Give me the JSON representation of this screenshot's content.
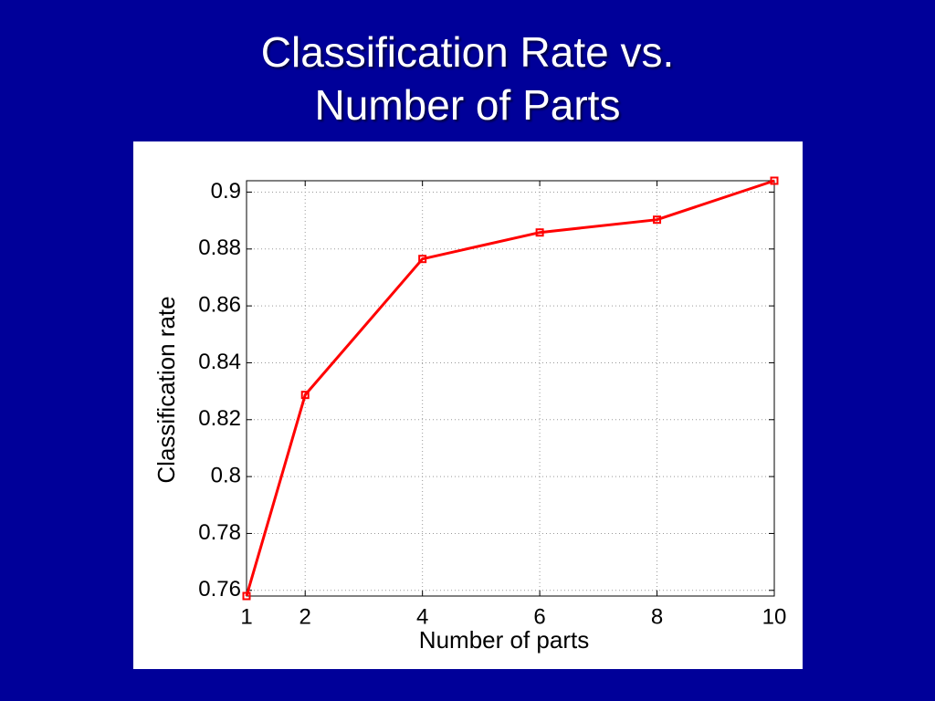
{
  "chart_data": {
    "type": "line",
    "title": "Classification Rate vs. Number of Parts",
    "xlabel": "Number of parts",
    "ylabel": "Classification rate",
    "x": [
      1,
      2,
      4,
      6,
      8,
      10
    ],
    "series": [
      {
        "name": "Classification rate",
        "color": "#ff0000",
        "values": [
          0.758,
          0.8287,
          0.8765,
          0.8858,
          0.8903,
          0.904
        ]
      }
    ],
    "xlim": [
      1,
      10
    ],
    "xticks": [
      1,
      2,
      4,
      6,
      8,
      10
    ],
    "ylim": [
      0.758,
      0.904
    ],
    "yticks": [
      0.76,
      0.78,
      0.8,
      0.82,
      0.84,
      0.86,
      0.88,
      0.9
    ],
    "grid": true
  }
}
